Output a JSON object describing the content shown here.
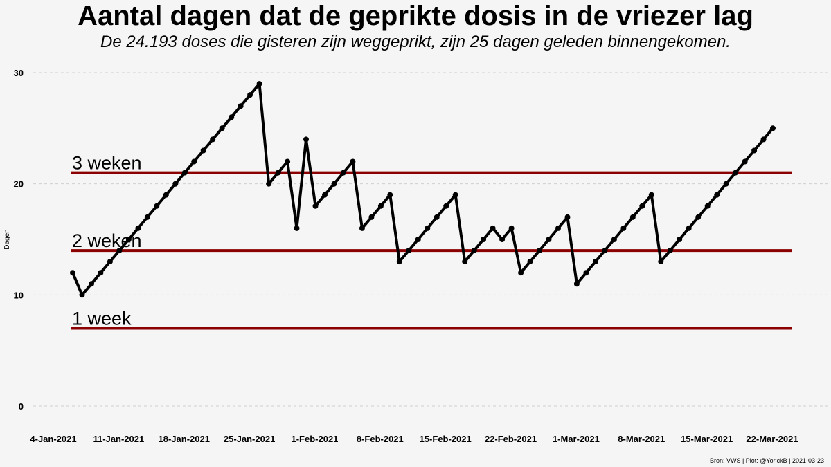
{
  "chart_data": {
    "type": "line",
    "title": "Aantal dagen dat de geprikte dosis in de vriezer lag",
    "subtitle": "De 24.193 doses die gisteren zijn weggeprikt, zijn 25 dagen geleden binnengekomen.",
    "xlabel": "",
    "ylabel": "Dagen",
    "ylim": [
      0,
      30
    ],
    "yticks": [
      0,
      10,
      20,
      30
    ],
    "grid": "horizontal-dashed",
    "x_start": "2021-01-04",
    "x_end": "2021-03-22",
    "xticks": [
      {
        "date": "2021-01-04",
        "label": "4-Jan-2021"
      },
      {
        "date": "2021-01-11",
        "label": "11-Jan-2021"
      },
      {
        "date": "2021-01-18",
        "label": "18-Jan-2021"
      },
      {
        "date": "2021-01-25",
        "label": "25-Jan-2021"
      },
      {
        "date": "2021-02-01",
        "label": "1-Feb-2021"
      },
      {
        "date": "2021-02-08",
        "label": "8-Feb-2021"
      },
      {
        "date": "2021-02-15",
        "label": "15-Feb-2021"
      },
      {
        "date": "2021-02-22",
        "label": "22-Feb-2021"
      },
      {
        "date": "2021-03-01",
        "label": "1-Mar-2021"
      },
      {
        "date": "2021-03-08",
        "label": "8-Mar-2021"
      },
      {
        "date": "2021-03-15",
        "label": "15-Mar-2021"
      },
      {
        "date": "2021-03-22",
        "label": "22-Mar-2021"
      }
    ],
    "reference_lines": [
      {
        "value": 21,
        "label": "3 weken",
        "color": "#8b0000"
      },
      {
        "value": 14,
        "label": "2 weken",
        "color": "#8b0000"
      },
      {
        "value": 7,
        "label": "1 week",
        "color": "#8b0000"
      }
    ],
    "series": [
      {
        "color": "#000000",
        "points": [
          [
            "2021-01-04",
            12
          ],
          [
            "2021-01-05",
            10
          ],
          [
            "2021-01-06",
            11
          ],
          [
            "2021-01-07",
            12
          ],
          [
            "2021-01-08",
            13
          ],
          [
            "2021-01-09",
            14
          ],
          [
            "2021-01-10",
            15
          ],
          [
            "2021-01-11",
            16
          ],
          [
            "2021-01-12",
            17
          ],
          [
            "2021-01-13",
            18
          ],
          [
            "2021-01-14",
            19
          ],
          [
            "2021-01-15",
            20
          ],
          [
            "2021-01-16",
            21
          ],
          [
            "2021-01-17",
            22
          ],
          [
            "2021-01-18",
            23
          ],
          [
            "2021-01-19",
            24
          ],
          [
            "2021-01-20",
            25
          ],
          [
            "2021-01-21",
            26
          ],
          [
            "2021-01-22",
            27
          ],
          [
            "2021-01-23",
            28
          ],
          [
            "2021-01-24",
            29
          ],
          [
            "2021-01-25",
            20
          ],
          [
            "2021-01-26",
            21
          ],
          [
            "2021-01-27",
            22
          ],
          [
            "2021-01-28",
            16
          ],
          [
            "2021-01-29",
            24
          ],
          [
            "2021-01-30",
            18
          ],
          [
            "2021-01-31",
            19
          ],
          [
            "2021-02-01",
            20
          ],
          [
            "2021-02-02",
            21
          ],
          [
            "2021-02-03",
            22
          ],
          [
            "2021-02-04",
            16
          ],
          [
            "2021-02-05",
            17
          ],
          [
            "2021-02-06",
            18
          ],
          [
            "2021-02-07",
            19
          ],
          [
            "2021-02-08",
            13
          ],
          [
            "2021-02-09",
            14
          ],
          [
            "2021-02-10",
            15
          ],
          [
            "2021-02-11",
            16
          ],
          [
            "2021-02-12",
            17
          ],
          [
            "2021-02-13",
            18
          ],
          [
            "2021-02-14",
            19
          ],
          [
            "2021-02-15",
            13
          ],
          [
            "2021-02-16",
            14
          ],
          [
            "2021-02-17",
            15
          ],
          [
            "2021-02-18",
            16
          ],
          [
            "2021-02-19",
            15
          ],
          [
            "2021-02-20",
            16
          ],
          [
            "2021-02-21",
            12
          ],
          [
            "2021-02-22",
            13
          ],
          [
            "2021-02-23",
            14
          ],
          [
            "2021-02-24",
            15
          ],
          [
            "2021-02-25",
            16
          ],
          [
            "2021-02-26",
            17
          ],
          [
            "2021-02-27",
            11
          ],
          [
            "2021-02-28",
            12
          ],
          [
            "2021-03-01",
            13
          ],
          [
            "2021-03-02",
            14
          ],
          [
            "2021-03-03",
            15
          ],
          [
            "2021-03-04",
            16
          ],
          [
            "2021-03-05",
            17
          ],
          [
            "2021-03-06",
            18
          ],
          [
            "2021-03-07",
            19
          ],
          [
            "2021-03-08",
            13
          ],
          [
            "2021-03-09",
            14
          ],
          [
            "2021-03-10",
            15
          ],
          [
            "2021-03-11",
            16
          ],
          [
            "2021-03-12",
            17
          ],
          [
            "2021-03-13",
            18
          ],
          [
            "2021-03-14",
            19
          ],
          [
            "2021-03-15",
            20
          ],
          [
            "2021-03-16",
            21
          ],
          [
            "2021-03-17",
            22
          ],
          [
            "2021-03-18",
            23
          ],
          [
            "2021-03-19",
            24
          ],
          [
            "2021-03-20",
            25
          ]
        ]
      }
    ]
  },
  "caption": "Bron: VWS | Plot: @YorickB  |  2021-03-23"
}
